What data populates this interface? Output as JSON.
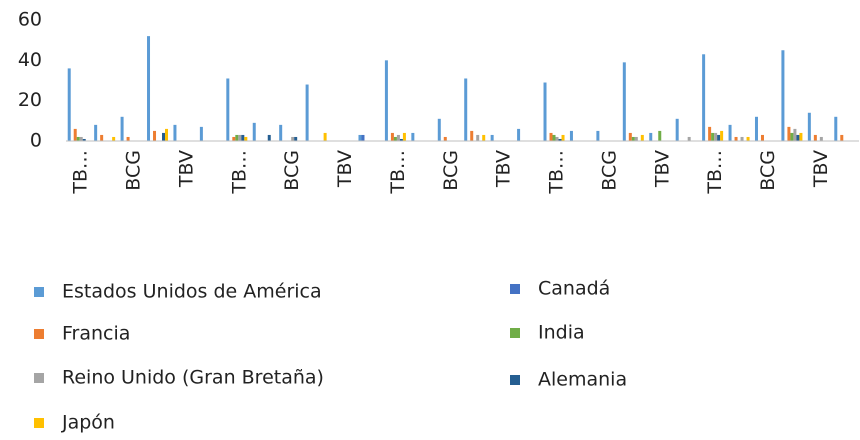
{
  "chart_data": {
    "type": "bar",
    "categories": [
      "TB…",
      null,
      "BCG",
      null,
      "TBV",
      null,
      "TB…",
      null,
      "BCG",
      null,
      "TBV",
      null,
      "TB…",
      null,
      "BCG",
      null,
      "TBV",
      null,
      "TB…",
      null,
      "BCG",
      null,
      "TBV",
      null,
      "TB…",
      null,
      "BCG",
      null,
      "TBV",
      null
    ],
    "series": [
      {
        "name": "Estados Unidos de América",
        "color": "#5b9bd5",
        "values": [
          36,
          8,
          12,
          52,
          8,
          7,
          31,
          9,
          8,
          28,
          0,
          3,
          40,
          4,
          11,
          31,
          3,
          6,
          29,
          5,
          5,
          39,
          4,
          11,
          43,
          8,
          12,
          45,
          14,
          12
        ]
      },
      {
        "name": "Canadá",
        "color": "#4472c4",
        "values": [
          0,
          0,
          0,
          0,
          0,
          0,
          0,
          0,
          0,
          0,
          0,
          3,
          0,
          0,
          0,
          0,
          0,
          0,
          0,
          0,
          0,
          0,
          0,
          0,
          0,
          0,
          0,
          0,
          0,
          0
        ]
      },
      {
        "name": "Francia",
        "color": "#ed7d31",
        "values": [
          6,
          3,
          2,
          5,
          0,
          0,
          2,
          0,
          0,
          0,
          0,
          0,
          4,
          0,
          2,
          5,
          0,
          0,
          4,
          0,
          0,
          4,
          0,
          0,
          7,
          2,
          3,
          7,
          3,
          3
        ]
      },
      {
        "name": "India",
        "color": "#70ad47",
        "values": [
          2,
          0,
          0,
          0,
          0,
          0,
          3,
          0,
          0,
          0,
          0,
          0,
          2,
          0,
          0,
          0,
          0,
          0,
          3,
          0,
          0,
          2,
          5,
          0,
          4,
          0,
          0,
          4,
          0,
          0
        ]
      },
      {
        "name": "Reino Unido (Gran Bretaña)",
        "color": "#a5a5a5",
        "values": [
          2,
          0,
          0,
          0,
          0,
          0,
          3,
          0,
          2,
          0,
          0,
          0,
          3,
          0,
          0,
          3,
          0,
          0,
          2,
          0,
          0,
          2,
          0,
          2,
          4,
          2,
          0,
          6,
          2,
          0
        ]
      },
      {
        "name": "Alemania",
        "color": "#255e91",
        "values": [
          1,
          0,
          0,
          4,
          0,
          0,
          3,
          3,
          2,
          0,
          0,
          0,
          1,
          0,
          0,
          0,
          0,
          0,
          1,
          0,
          0,
          0,
          0,
          0,
          3,
          0,
          0,
          3,
          0,
          0
        ]
      },
      {
        "name": "Japón",
        "color": "#ffc000",
        "values": [
          0,
          2,
          0,
          6,
          0,
          0,
          2,
          0,
          0,
          4,
          0,
          0,
          4,
          0,
          0,
          3,
          0,
          0,
          3,
          0,
          0,
          3,
          0,
          0,
          5,
          2,
          0,
          4,
          0,
          0
        ]
      }
    ],
    "ylim": [
      0,
      60
    ],
    "yticks": [
      0,
      20,
      40,
      60
    ],
    "grid": false
  }
}
